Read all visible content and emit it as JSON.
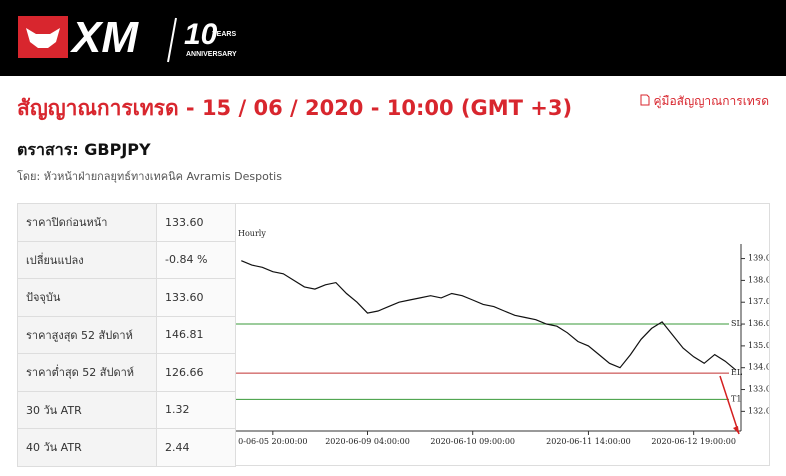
{
  "header": {
    "logo": "XM",
    "badge": "10",
    "badge_sub": "YEARS",
    "badge_text": "ANNIVERSARY"
  },
  "title": "สัญญาณการเทรด - 15 / 06 / 2020 - 10:00 (GMT +3)",
  "guide_link": "คู่มือสัญญาณการเทรด",
  "instrument": "ตราสาร: GBPJPY",
  "author": "โดย: หัวหน้าฝ่ายกลยุทธ์ทางเทคนิค Avramis Despotis",
  "table": {
    "rows": [
      [
        "ราคาปิดก่อนหน้า",
        "133.60"
      ],
      [
        "เปลี่ยนแปลง",
        "-0.84 %"
      ],
      [
        "ปัจจุบัน",
        "133.60"
      ],
      [
        "ราคาสูงสุด 52 สัปดาห์",
        "146.81"
      ],
      [
        "ราคาต่ำสุด 52 สัปดาห์",
        "126.66"
      ],
      [
        "30 วัน ATR",
        "1.32"
      ],
      [
        "40 วัน ATR",
        "2.44"
      ]
    ]
  },
  "chart_data": {
    "type": "line",
    "title": "Hourly",
    "categories": [
      null,
      null,
      null,
      "0-06-05 20:00:00",
      null,
      null,
      null,
      null,
      null,
      null,
      null,
      null,
      "2020-06-09 04:00:00",
      null,
      null,
      null,
      null,
      null,
      null,
      null,
      null,
      null,
      "2020-06-10 09:00:00",
      null,
      null,
      null,
      null,
      null,
      null,
      null,
      null,
      null,
      null,
      "2020-06-11 14:00:00",
      null,
      null,
      null,
      null,
      null,
      null,
      null,
      null,
      null,
      "2020-06-12 19:00:00",
      null,
      null,
      null,
      null
    ],
    "series": [
      {
        "name": "GBPJPY",
        "color": "#111111",
        "values": [
          138.9,
          138.7,
          138.6,
          138.4,
          138.3,
          138.0,
          137.7,
          137.6,
          137.8,
          137.9,
          137.4,
          137.0,
          136.5,
          136.6,
          136.8,
          137.0,
          137.1,
          137.2,
          137.3,
          137.2,
          137.4,
          137.3,
          137.1,
          136.9,
          136.8,
          136.6,
          136.4,
          136.3,
          136.2,
          136.0,
          135.9,
          135.6,
          135.2,
          135.0,
          134.6,
          134.2,
          134.0,
          134.6,
          135.3,
          135.8,
          136.1,
          135.5,
          134.9,
          134.5,
          134.2,
          134.6,
          134.3,
          133.9
        ]
      }
    ],
    "levels": [
      {
        "label": "SL",
        "value": 136.0,
        "color": "#3a9a3a"
      },
      {
        "label": "EL",
        "value": 133.75,
        "color": "#c03030"
      },
      {
        "label": "T1",
        "value": 132.55,
        "color": "#3a9a3a"
      }
    ],
    "ylim": [
      131.1,
      141.5
    ],
    "yticks": [
      {
        "value": 132,
        "label": "132.00"
      },
      {
        "value": 133,
        "label": "133.00"
      },
      {
        "value": 134,
        "label": "134.00"
      },
      {
        "value": 135,
        "label": "135.00"
      },
      {
        "value": 136,
        "label": "136.00"
      },
      {
        "value": 137,
        "label": "137.00"
      },
      {
        "value": 138,
        "label": "138.00"
      },
      {
        "value": 139,
        "label": "139.00"
      }
    ]
  }
}
